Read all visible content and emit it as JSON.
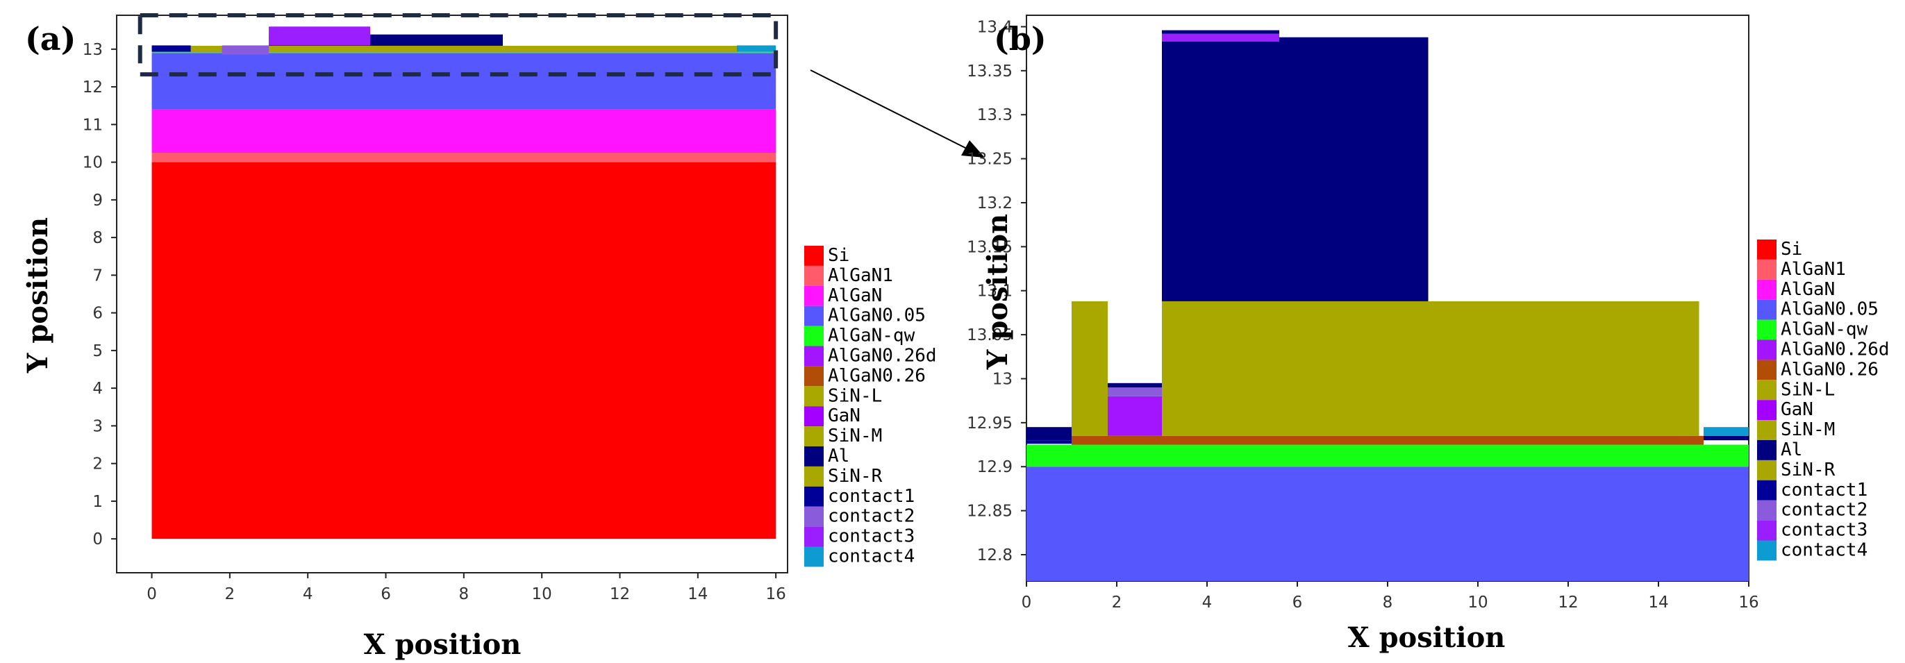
{
  "chart_data": [
    {
      "type": "heatmap",
      "panel_label": "(a)",
      "xlabel": "X position",
      "ylabel": "Y position",
      "xlim": [
        -0.9,
        16.3
      ],
      "ylim": [
        -0.9,
        13.9
      ],
      "xticks": [
        0,
        2,
        4,
        6,
        8,
        10,
        12,
        14,
        16
      ],
      "yticks": [
        0,
        1,
        2,
        3,
        4,
        5,
        6,
        7,
        8,
        9,
        10,
        11,
        12,
        13
      ],
      "zoom_box": {
        "x": [
          -0.3,
          16.0
        ],
        "y": [
          12.33,
          13.9
        ]
      },
      "regions": [
        {
          "material": "Si",
          "x": [
            0,
            16
          ],
          "y": [
            0,
            10
          ]
        },
        {
          "material": "AlGaN1",
          "x": [
            0,
            16
          ],
          "y": [
            10,
            10.25
          ]
        },
        {
          "material": "AlGaN",
          "x": [
            0,
            16
          ],
          "y": [
            10.25,
            11.4
          ]
        },
        {
          "material": "AlGaN0.05",
          "x": [
            0,
            16
          ],
          "y": [
            11.4,
            12.9
          ]
        },
        {
          "material": "AlGaN-qw",
          "x": [
            0,
            16
          ],
          "y": [
            12.9,
            12.93
          ]
        },
        {
          "material": "AlGaN0.26",
          "x": [
            1,
            15
          ],
          "y": [
            12.93,
            12.94
          ]
        },
        {
          "material": "SiN-L",
          "x": [
            1,
            3
          ],
          "y": [
            12.94,
            13.09
          ]
        },
        {
          "material": "SiN-M",
          "x": [
            3,
            15
          ],
          "y": [
            12.94,
            13.09
          ]
        },
        {
          "material": "GaN",
          "x": [
            1.8,
            3
          ],
          "y": [
            12.94,
            12.98
          ]
        },
        {
          "material": "Al",
          "x": [
            3,
            9
          ],
          "y": [
            13.09,
            13.39
          ]
        },
        {
          "material": "contact1",
          "x": [
            0,
            1
          ],
          "y": [
            12.93,
            13.1
          ]
        },
        {
          "material": "contact2",
          "x": [
            1.8,
            3
          ],
          "y": [
            12.86,
            13.1
          ]
        },
        {
          "material": "contact3",
          "x": [
            3,
            5.6
          ],
          "y": [
            13.1,
            13.6
          ]
        },
        {
          "material": "contact4",
          "x": [
            15,
            16
          ],
          "y": [
            12.93,
            13.1
          ]
        }
      ]
    },
    {
      "type": "heatmap",
      "panel_label": "(b)",
      "xlabel": "X position",
      "ylabel": "Y position",
      "xlim": [
        0,
        16
      ],
      "ylim": [
        12.77,
        13.413
      ],
      "xticks": [
        0,
        2,
        4,
        6,
        8,
        10,
        12,
        14,
        16
      ],
      "yticks": [
        "12.8",
        "12.85",
        "12.9",
        "12.95",
        "13",
        "13.05",
        "13.1",
        "13.15",
        "13.2",
        "13.25",
        "13.3",
        "13.35",
        "13.4"
      ],
      "regions": [
        {
          "material": "AlGaN0.05",
          "x": [
            0,
            16
          ],
          "y": [
            12.77,
            12.9
          ]
        },
        {
          "material": "AlGaN-qw",
          "x": [
            0,
            16
          ],
          "y": [
            12.9,
            12.925
          ]
        },
        {
          "material": "AlGaN0.26",
          "x": [
            1,
            15
          ],
          "y": [
            12.925,
            12.935
          ]
        },
        {
          "material": "Al",
          "x": [
            0,
            1
          ],
          "y": [
            12.93,
            12.945
          ]
        },
        {
          "material": "contact1",
          "x": [
            0,
            1
          ],
          "y": [
            12.926,
            12.93
          ]
        },
        {
          "material": "Al",
          "x": [
            15,
            16
          ],
          "y": [
            12.93,
            12.935
          ]
        },
        {
          "material": "contact4",
          "x": [
            15,
            16
          ],
          "y": [
            12.935,
            12.945
          ]
        },
        {
          "material": "SiN-L",
          "x": [
            1,
            1.8
          ],
          "y": [
            12.935,
            13.088
          ]
        },
        {
          "material": "SiN-M",
          "x": [
            3,
            14.9
          ],
          "y": [
            12.935,
            13.088
          ]
        },
        {
          "material": "AlGaN0.26d",
          "x": [
            1.8,
            3
          ],
          "y": [
            12.935,
            12.98
          ]
        },
        {
          "material": "contact2",
          "x": [
            1.8,
            3
          ],
          "y": [
            12.98,
            12.99
          ]
        },
        {
          "material": "Al",
          "x": [
            1.8,
            3
          ],
          "y": [
            12.99,
            12.995
          ]
        },
        {
          "material": "Al",
          "x": [
            3,
            8.9
          ],
          "y": [
            13.088,
            13.388
          ]
        },
        {
          "material": "contact3",
          "x": [
            3,
            5.6
          ],
          "y": [
            13.383,
            13.392
          ]
        },
        {
          "material": "Al",
          "x": [
            3,
            5.6
          ],
          "y": [
            13.392,
            13.396
          ]
        }
      ]
    }
  ],
  "legend": [
    {
      "name": "Si",
      "color": "#ff0000"
    },
    {
      "name": "AlGaN1",
      "color": "#ff5b6b"
    },
    {
      "name": "AlGaN",
      "color": "#ff14ff"
    },
    {
      "name": "AlGaN0.05",
      "color": "#5757fe"
    },
    {
      "name": "AlGaN-qw",
      "color": "#14ff14"
    },
    {
      "name": "AlGaN0.26d",
      "color": "#a314ff"
    },
    {
      "name": "AlGaN0.26",
      "color": "#b24d07"
    },
    {
      "name": "SiN-L",
      "color": "#a8a800"
    },
    {
      "name": "GaN",
      "color": "#a300ff"
    },
    {
      "name": "SiN-M",
      "color": "#a8a800"
    },
    {
      "name": "Al",
      "color": "#00007f"
    },
    {
      "name": "SiN-R",
      "color": "#a8a800"
    },
    {
      "name": "contact1",
      "color": "#000099"
    },
    {
      "name": "contact2",
      "color": "#8a5cdc"
    },
    {
      "name": "contact3",
      "color": "#9a1eff"
    },
    {
      "name": "contact4",
      "color": "#0d9bd1"
    }
  ]
}
